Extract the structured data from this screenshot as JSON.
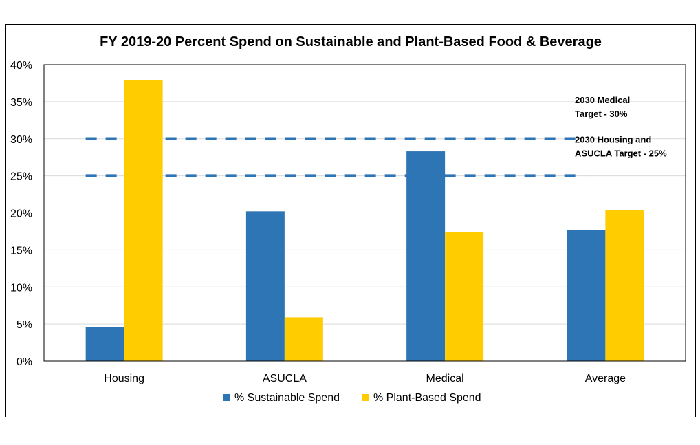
{
  "chart_data": {
    "type": "bar",
    "title": "FY 2019-20 Percent Spend on Sustainable and Plant-Based Food & Beverage",
    "categories": [
      "Housing",
      "ASUCLA",
      "Medical",
      "Average"
    ],
    "series": [
      {
        "name": "% Sustainable Spend",
        "color": "#2E75B6",
        "values": [
          4.6,
          20.2,
          28.3,
          17.7
        ]
      },
      {
        "name": "% Plant-Based Spend",
        "color": "#FFCC00",
        "values": [
          37.9,
          5.9,
          17.4,
          20.4
        ]
      }
    ],
    "ylim": [
      0,
      40
    ],
    "yticks": [
      "0%",
      "5%",
      "10%",
      "15%",
      "20%",
      "25%",
      "30%",
      "35%",
      "40%"
    ],
    "grid": true,
    "legend_position": "bottom",
    "targets": [
      {
        "value": 30,
        "label_lines": [
          "2030 Medical",
          "Target - 30%"
        ],
        "color": "#2E75B6"
      },
      {
        "value": 25,
        "label_lines": [
          "2030 Housing and",
          "ASUCLA Target - 25%"
        ],
        "color": "#2E75B6"
      }
    ]
  }
}
